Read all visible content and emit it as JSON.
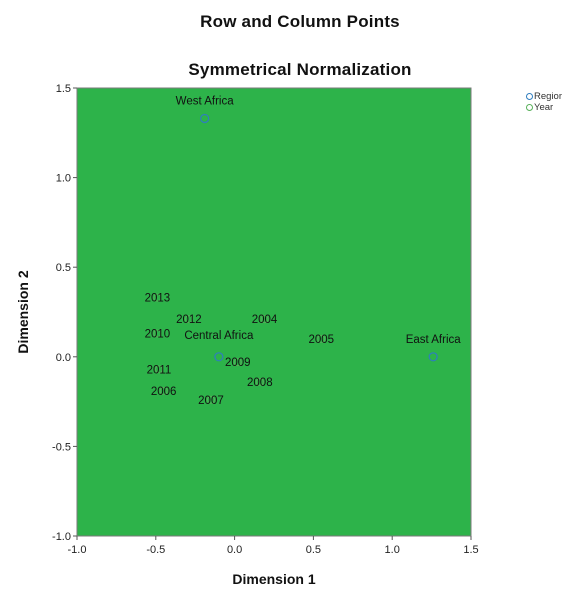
{
  "chart_data": {
    "type": "scatter",
    "title": "Row and Column Points",
    "subtitle": "Symmetrical Normalization",
    "xlabel": "Dimension 1",
    "ylabel": "Dimension 2",
    "xlim": [
      -1.0,
      1.5
    ],
    "ylim": [
      -1.0,
      1.5
    ],
    "xticks": [
      "-1.0",
      "-0.5",
      "0.0",
      "0.5",
      "1.0",
      "1.5"
    ],
    "yticks": [
      "1.5",
      "1.0",
      "0.5",
      "0.0",
      "-0.5",
      "-1.0"
    ],
    "xtick_values": [
      -1.0,
      -0.5,
      0.0,
      0.5,
      1.0,
      1.5
    ],
    "ytick_values": [
      1.5,
      1.0,
      0.5,
      0.0,
      -0.5,
      -1.0
    ],
    "plot_background": "#2db34a",
    "grid": false,
    "legend_position": "top-right outside",
    "series": [
      {
        "name": "Region",
        "color": "#2f7dbf",
        "points": [
          {
            "label": "West Africa",
            "x": -0.19,
            "y": 1.33
          },
          {
            "label": "Central Africa",
            "x": -0.1,
            "y": 0.0
          },
          {
            "label": "East Africa",
            "x": 1.26,
            "y": 0.0
          }
        ]
      },
      {
        "name": "Year",
        "color": "#58b05a",
        "points": [
          {
            "label": "2013",
            "x": -0.49,
            "y": 0.33
          },
          {
            "label": "2012",
            "x": -0.29,
            "y": 0.21
          },
          {
            "label": "2004",
            "x": 0.19,
            "y": 0.21
          },
          {
            "label": "2010",
            "x": -0.49,
            "y": 0.13
          },
          {
            "label": "2005",
            "x": 0.55,
            "y": 0.1
          },
          {
            "label": "2009",
            "x": 0.02,
            "y": -0.03
          },
          {
            "label": "2011",
            "x": -0.48,
            "y": -0.07
          },
          {
            "label": "2008",
            "x": 0.16,
            "y": -0.14
          },
          {
            "label": "2006",
            "x": -0.45,
            "y": -0.19
          },
          {
            "label": "2007",
            "x": -0.15,
            "y": -0.24
          }
        ]
      }
    ]
  },
  "legend": {
    "items": [
      {
        "label": "Regior",
        "icon": "circle-icon"
      },
      {
        "label": "Year",
        "icon": "circle-icon"
      }
    ]
  }
}
